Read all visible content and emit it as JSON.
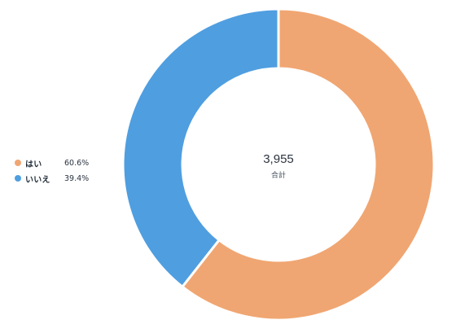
{
  "chart_data": {
    "type": "donut",
    "total": "3,955",
    "total_caption": "合計",
    "slices": [
      {
        "label": "はい",
        "percent_label": "60.6%",
        "value": 60.6,
        "color": "#f0a672"
      },
      {
        "label": "いいえ",
        "percent_label": "39.4%",
        "value": 39.4,
        "color": "#4f9ee0"
      }
    ],
    "legend_position": "left"
  }
}
